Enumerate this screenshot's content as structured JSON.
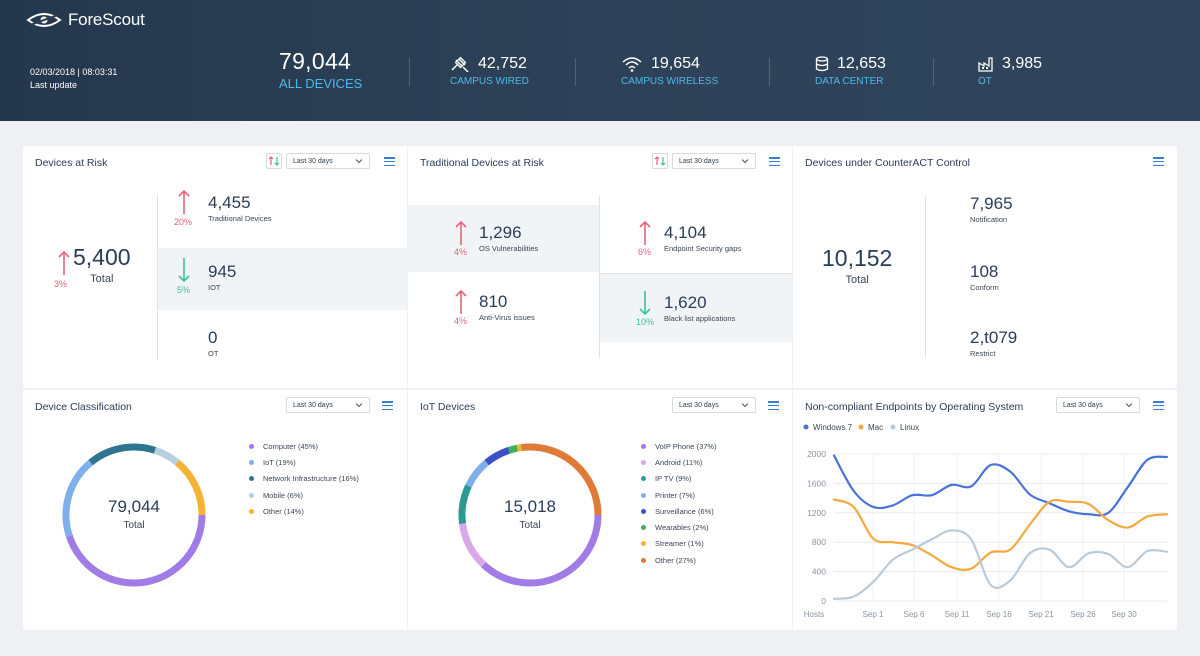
{
  "header": {
    "logo_text": "ForeScout",
    "update_date": "02/03/2018 | 08:03:31",
    "update_label": "Last update",
    "all_devices": {
      "count": "79,044",
      "label": "ALL DEVICES"
    },
    "stats": [
      {
        "icon": "cable-icon",
        "count": "42,752",
        "label": "CAMPUS WIRED"
      },
      {
        "icon": "wifi-icon",
        "count": "19,654",
        "label": "CAMPUS WIRELESS"
      },
      {
        "icon": "database-icon",
        "count": "12,653",
        "label": "DATA CENTER"
      },
      {
        "icon": "factory-icon",
        "count": "3,985",
        "label": "OT"
      }
    ]
  },
  "devices_at_risk": {
    "title": "Devices at Risk",
    "period": "Last  30 days",
    "total": {
      "count": "5,400",
      "label": "Total",
      "pct": "3%",
      "trend": "up"
    },
    "items": [
      {
        "count": "4,455",
        "label": "Traditional Devices",
        "pct": "20%",
        "trend": "up"
      },
      {
        "count": "945",
        "label": "IOT",
        "pct": "5%",
        "trend": "down"
      },
      {
        "count": "0",
        "label": "OT"
      }
    ]
  },
  "traditional_risk": {
    "title": "Traditional Devices at Risk",
    "period": "Last  30 days",
    "items": [
      {
        "count": "1,296",
        "label": "OS Vulnerabilities",
        "pct": "4%",
        "trend": "up"
      },
      {
        "count": "4,104",
        "label": "Endpoint Security gaps",
        "pct": "6%",
        "trend": "up"
      },
      {
        "count": "810",
        "label": "Anti-Virus issues",
        "pct": "4%",
        "trend": "up"
      },
      {
        "count": "1,620",
        "label": "Black list applications",
        "pct": "10%",
        "trend": "down"
      }
    ]
  },
  "control": {
    "title": "Devices under CounterACT Control",
    "total": {
      "count": "10,152",
      "label": "Total"
    },
    "items": [
      {
        "count": "7,965",
        "label": "Notification"
      },
      {
        "count": "108",
        "label": "Conform"
      },
      {
        "count": "2,t079",
        "label": "Restrict"
      }
    ]
  },
  "classification": {
    "title": "Device Classification",
    "period": "Last  30 days",
    "total": "79,044",
    "total_label": "Total",
    "legend": [
      {
        "label": "Computer (45%)",
        "color": "#a17be6",
        "value": 45
      },
      {
        "label": "IoT (19%)",
        "color": "#7fb0ec",
        "value": 19
      },
      {
        "label": "Network Infrastructure (16%)",
        "color": "#2f7590",
        "value": 16
      },
      {
        "label": "Mobile (6%)",
        "color": "#b8cfe0",
        "value": 6
      },
      {
        "label": "Other (14%)",
        "color": "#f5b335",
        "value": 14
      }
    ]
  },
  "iot": {
    "title": "IoT Devices",
    "period": "Last  30 days",
    "total": "15,018",
    "total_label": "Total",
    "legend": [
      {
        "label": "VoIP Phone (37%)",
        "color": "#a17be6",
        "value": 37
      },
      {
        "label": "Android (11%)",
        "color": "#d9a8ea",
        "value": 11
      },
      {
        "label": "IP TV (9%)",
        "color": "#2b9a91",
        "value": 9
      },
      {
        "label": "Printer (7%)",
        "color": "#7fb0ec",
        "value": 7
      },
      {
        "label": "Surveillance (6%)",
        "color": "#3c51c5",
        "value": 6
      },
      {
        "label": "Wearables (2%)",
        "color": "#3cb35a",
        "value": 2
      },
      {
        "label": "Streamer (1%)",
        "color": "#f5b335",
        "value": 1
      },
      {
        "label": "Other (27%)",
        "color": "#e07a37",
        "value": 27
      }
    ]
  },
  "os_chart": {
    "title": "Non-compliant Endpoints by Operating System",
    "period": "Last  30 days"
  },
  "chart_data": {
    "type": "line",
    "ylabel": "",
    "xlabel": "Hosts",
    "ylim": [
      0,
      2000
    ],
    "yticks": [
      "0",
      "400",
      "800",
      "1200",
      "1600",
      "2000"
    ],
    "categories": [
      "Sep 1",
      "Sep 6",
      "Sep 11",
      "Sep 16",
      "Sep 21",
      "Sep 26",
      "Sep 30"
    ],
    "x": [
      0,
      2,
      4,
      6,
      8,
      10,
      12,
      14,
      16,
      18,
      20,
      22,
      24,
      26,
      28,
      30,
      32,
      34
    ],
    "legend_position": "top-left",
    "grid": true,
    "series": [
      {
        "name": "Windows 7",
        "color": "#4a73d8",
        "values": [
          1980,
          1500,
          1280,
          1300,
          1440,
          1440,
          1580,
          1560,
          1850,
          1760,
          1450,
          1330,
          1220,
          1180,
          1200,
          1550,
          1920,
          1960
        ]
      },
      {
        "name": "Mac",
        "color": "#f5a83c",
        "values": [
          1380,
          1280,
          850,
          800,
          760,
          620,
          460,
          440,
          660,
          700,
          1040,
          1350,
          1350,
          1320,
          1100,
          1000,
          1150,
          1180
        ]
      },
      {
        "name": "Linux",
        "color": "#b9cbd8",
        "values": [
          30,
          60,
          260,
          560,
          700,
          840,
          960,
          840,
          220,
          280,
          650,
          700,
          460,
          650,
          640,
          460,
          680,
          670
        ]
      }
    ]
  }
}
